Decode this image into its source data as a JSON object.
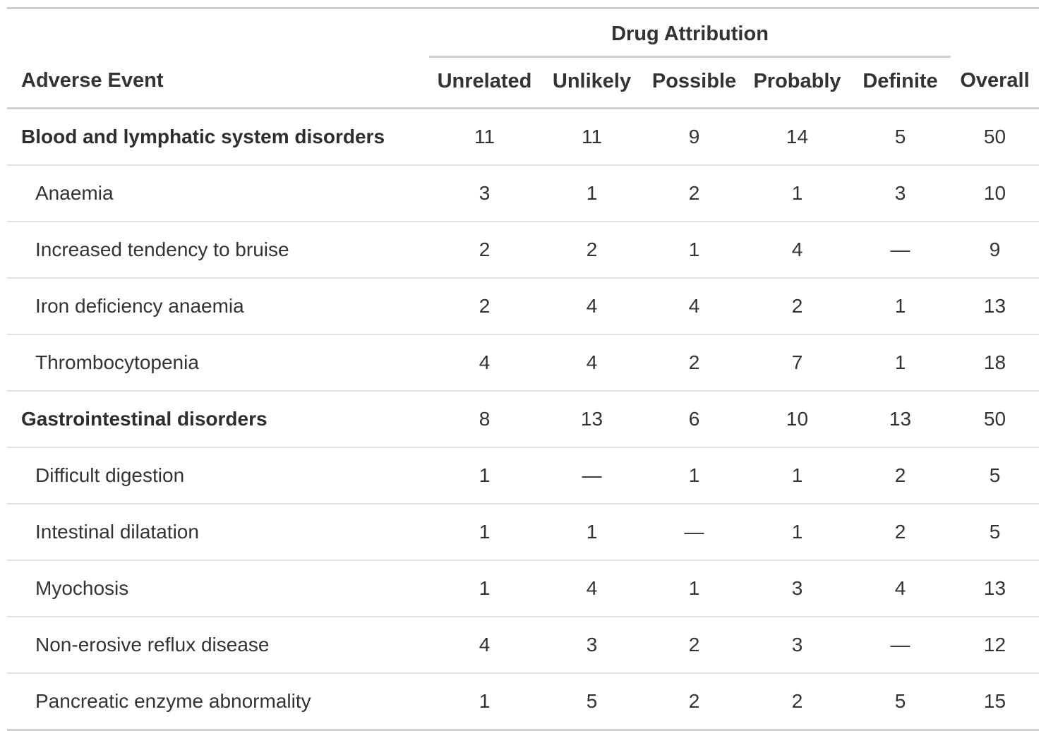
{
  "table": {
    "spanner_label": "Drug Attribution",
    "stub_header": "Adverse Event",
    "columns": [
      "Unrelated",
      "Unlikely",
      "Possible",
      "Probably",
      "Definite",
      "Overall"
    ],
    "rows": [
      {
        "type": "group",
        "label": "Blood and lymphatic system disorders",
        "values": [
          "11",
          "11",
          "9",
          "14",
          "5",
          "50"
        ]
      },
      {
        "type": "item",
        "label": "Anaemia",
        "values": [
          "3",
          "1",
          "2",
          "1",
          "3",
          "10"
        ]
      },
      {
        "type": "item",
        "label": "Increased tendency to bruise",
        "values": [
          "2",
          "2",
          "1",
          "4",
          "—",
          "9"
        ]
      },
      {
        "type": "item",
        "label": "Iron deficiency anaemia",
        "values": [
          "2",
          "4",
          "4",
          "2",
          "1",
          "13"
        ]
      },
      {
        "type": "item",
        "label": "Thrombocytopenia",
        "values": [
          "4",
          "4",
          "2",
          "7",
          "1",
          "18"
        ]
      },
      {
        "type": "group",
        "label": "Gastrointestinal disorders",
        "values": [
          "8",
          "13",
          "6",
          "10",
          "13",
          "50"
        ]
      },
      {
        "type": "item",
        "label": "Difficult digestion",
        "values": [
          "1",
          "—",
          "1",
          "1",
          "2",
          "5"
        ]
      },
      {
        "type": "item",
        "label": "Intestinal dilatation",
        "values": [
          "1",
          "1",
          "—",
          "1",
          "2",
          "5"
        ]
      },
      {
        "type": "item",
        "label": "Myochosis",
        "values": [
          "1",
          "4",
          "1",
          "3",
          "4",
          "13"
        ]
      },
      {
        "type": "item",
        "label": "Non-erosive reflux disease",
        "values": [
          "4",
          "3",
          "2",
          "3",
          "—",
          "12"
        ]
      },
      {
        "type": "item",
        "label": "Pancreatic enzyme abnormality",
        "values": [
          "1",
          "5",
          "2",
          "2",
          "5",
          "15"
        ]
      }
    ],
    "colors": {
      "text": "#333333",
      "border_heavy": "#cfcfcf",
      "border_light": "#e2e2e2"
    }
  }
}
